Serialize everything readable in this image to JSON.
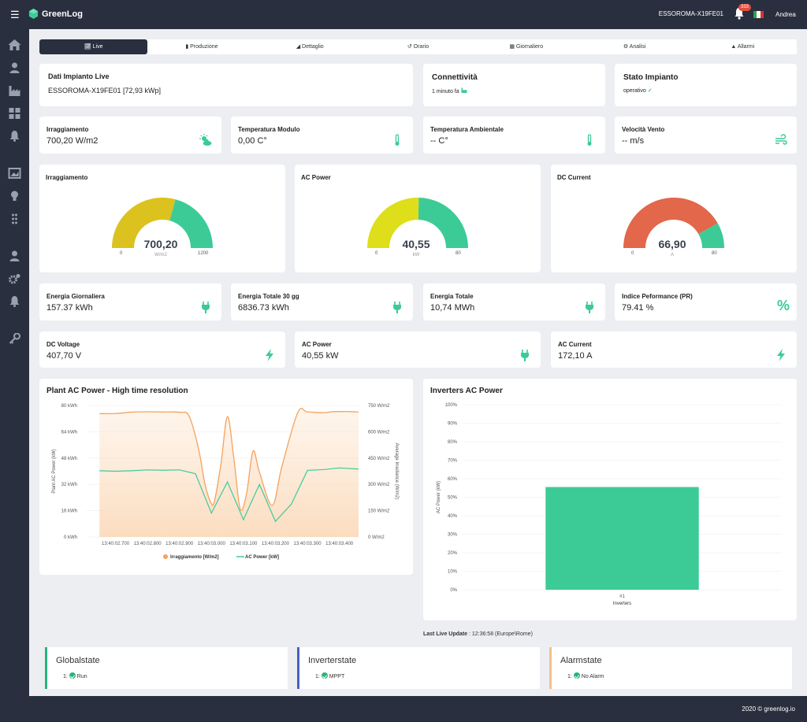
{
  "header": {
    "app_name": "GreenLog",
    "plant_id": "ESSOROMA-X19FE01",
    "notification_count": "333",
    "user_name": "Andrea"
  },
  "sidebar": {
    "icons": [
      "home-icon",
      "user-icon",
      "factory-icon",
      "dashboard-icon",
      "bell-icon",
      "image-icon",
      "lightbulb-icon",
      "grid-icon",
      "user-icon",
      "gears-icon",
      "bell-icon",
      "key-icon"
    ]
  },
  "tabs": [
    {
      "label": "Live",
      "active": true
    },
    {
      "label": "Produzione"
    },
    {
      "label": "Dettaglio"
    },
    {
      "label": "Orario"
    },
    {
      "label": "Giornaliero"
    },
    {
      "label": "Analisi"
    },
    {
      "label": "Allarmi"
    }
  ],
  "info": {
    "plant_title": "Dati Impianto Live",
    "plant_value": "ESSOROMA-X19FE01 [72,93 kWp]",
    "connectivity_title": "Connettività",
    "connectivity_value": "1 minuto fa",
    "status_title": "Stato Impianto",
    "status_value": "operativo"
  },
  "sensors": [
    {
      "title": "Irraggiamento",
      "value": "700,20  W/m2",
      "icon": "sun-cloud-icon"
    },
    {
      "title": "Temperatura Modulo",
      "value": "0,00  C°",
      "icon": "thermometer-icon"
    },
    {
      "title": "Temperatura Ambientale",
      "value": "--  C°",
      "icon": "thermometer-icon"
    },
    {
      "title": "Velocità Vento",
      "value": "--  m/s",
      "icon": "wind-icon"
    }
  ],
  "gauges": [
    {
      "title": "Irraggiamento",
      "value": "700,20",
      "unit": "W/m2",
      "min": "0",
      "max": "1200",
      "fraction": 0.5835,
      "color": "#dcc21e"
    },
    {
      "title": "AC Power",
      "value": "40,55",
      "unit": "kW",
      "min": "0",
      "max": "80",
      "fraction": 0.5069,
      "color": "#dede1a"
    },
    {
      "title": "DC Current",
      "value": "66,90",
      "unit": "A",
      "min": "0",
      "max": "80",
      "fraction": 0.836,
      "color": "#e2674b"
    }
  ],
  "energy": [
    {
      "title": "Energia Giornaliera",
      "value": "157.37  kWh",
      "icon": "plug-icon"
    },
    {
      "title": "Energia Totale 30 gg",
      "value": "6836.73  kWh",
      "icon": "plug-icon"
    },
    {
      "title": "Energia Totale",
      "value": "10,74  MWh",
      "icon": "plug-icon"
    },
    {
      "title": "Indice Peformance (PR)",
      "value": "79.41  %",
      "icon": "percent-icon",
      "icon_text": "%"
    }
  ],
  "electrical": [
    {
      "title": "DC Voltage",
      "value": "407,70  V",
      "icon": "bolt-icon"
    },
    {
      "title": "AC Power",
      "value": "40,55  kW",
      "icon": "plug-icon"
    },
    {
      "title": "AC Current",
      "value": "172,10  A",
      "icon": "bolt-icon"
    }
  ],
  "colors": {
    "accent": "#3ccb96",
    "orange": "#f5a25d",
    "dark": "#2a2f3f"
  },
  "chart_data": [
    {
      "type": "line",
      "title": "Plant AC Power - High time resolution",
      "xlabel": "",
      "ylabel": "Plant AC Power (kW)",
      "y2label": "Average Irradiance (W/m2)",
      "x": [
        "13:40:02.700",
        "13:40:02.800",
        "13:40:02.900",
        "13:40:03.000",
        "13:40:03.100",
        "13:40:03.200",
        "13:40:03.300",
        "13:40:03.400"
      ],
      "ylim": [
        0,
        80
      ],
      "y2lim": [
        0,
        750
      ],
      "y_ticks": [
        "0 kWh",
        "16 kWh",
        "32 kWh",
        "48 kWh",
        "64 kWh",
        "80 kWh"
      ],
      "y2_ticks": [
        "0 W/m2",
        "150 W/m2",
        "300 W/m2",
        "450 W/m2",
        "600 W/m2",
        "750 W/m2"
      ],
      "series": [
        {
          "name": "Irraggiamento [W/m2]",
          "axis": "right",
          "color": "#f5a25d",
          "points": [
            [
              2.65,
              704
            ],
            [
              2.7,
              704
            ],
            [
              2.75,
              712
            ],
            [
              2.8,
              714
            ],
            [
              2.85,
              713
            ],
            [
              2.9,
              711
            ],
            [
              2.93,
              690
            ],
            [
              2.96,
              500
            ],
            [
              2.98,
              300
            ],
            [
              3.0,
              190
            ],
            [
              3.01,
              210
            ],
            [
              3.03,
              420
            ],
            [
              3.05,
              686
            ],
            [
              3.07,
              450
            ],
            [
              3.09,
              160
            ],
            [
              3.11,
              250
            ],
            [
              3.13,
              490
            ],
            [
              3.15,
              370
            ],
            [
              3.19,
              180
            ],
            [
              3.22,
              400
            ],
            [
              3.27,
              710
            ],
            [
              3.3,
              713
            ],
            [
              3.35,
              709
            ],
            [
              3.38,
              715
            ],
            [
              3.43,
              715
            ],
            [
              3.46,
              713
            ]
          ]
        },
        {
          "name": "AC Power [kW]",
          "axis": "left",
          "color": "#3ccb96",
          "points": [
            [
              2.65,
              40.3
            ],
            [
              2.7,
              40.0
            ],
            [
              2.75,
              40.3
            ],
            [
              2.8,
              40.8
            ],
            [
              2.85,
              40.6
            ],
            [
              2.9,
              40.8
            ],
            [
              2.95,
              38.5
            ],
            [
              3.0,
              14.5
            ],
            [
              3.05,
              33.5
            ],
            [
              3.1,
              10.5
            ],
            [
              3.15,
              32.0
            ],
            [
              3.2,
              9.5
            ],
            [
              3.25,
              20.0
            ],
            [
              3.3,
              40.5
            ],
            [
              3.35,
              41.0
            ],
            [
              3.4,
              42.0
            ],
            [
              3.46,
              41.3
            ]
          ]
        }
      ]
    },
    {
      "type": "bar",
      "title": "Inverters AC Power",
      "categories": [
        "#1"
      ],
      "values": [
        55.5
      ],
      "xlabel": "Inverters",
      "ylabel": "AC Power (kW)",
      "ylim": [
        0,
        100
      ],
      "y_ticks": [
        "0%",
        "10%",
        "20%",
        "30%",
        "40%",
        "50%",
        "60%",
        "70%",
        "80%",
        "90%",
        "100%"
      ],
      "color": "#3ccb96"
    }
  ],
  "last_update": {
    "label": "Last Live Update",
    "value": " : 12:36:58 (Europe\\Rome)"
  },
  "states": [
    {
      "title": "Globalstate",
      "item": "1:",
      "value": "Run",
      "color": "#27b47a"
    },
    {
      "title": "Inverterstate",
      "item": "1:",
      "value": "MPPT",
      "color": "#4a5fc1"
    },
    {
      "title": "Alarmstate",
      "item": "1:",
      "value": "No Alarm",
      "color": "#f5c08a"
    }
  ],
  "footer": {
    "text": "2020 © greenlog.io"
  }
}
